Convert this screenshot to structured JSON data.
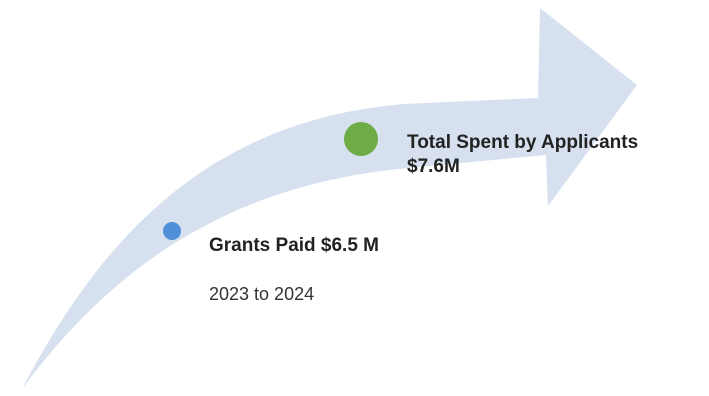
{
  "diagram": {
    "arrow_color": "#d6e0ef",
    "milestones": [
      {
        "id": "total",
        "title": "Total Spent by Applicants",
        "amount": "$7.6M",
        "dot_color": "#6eac45"
      },
      {
        "id": "grants",
        "title": "Grants Paid $6.5 M",
        "period": "2023 to 2024",
        "dot_color": "#4f90d9"
      }
    ]
  }
}
